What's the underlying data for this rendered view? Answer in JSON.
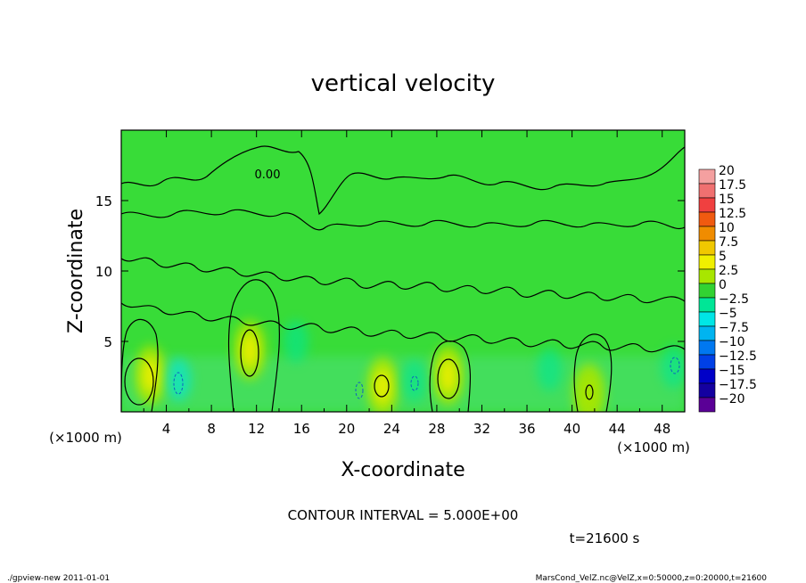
{
  "chart_data": {
    "type": "heatmap",
    "title": "vertical velocity",
    "xlabel": "X-coordinate",
    "ylabel": "Z-coordinate",
    "x_unit_note_left": "(×1000 m)",
    "x_unit_note_right": "(×1000 m)",
    "xlim": [
      0,
      50
    ],
    "ylim": [
      0,
      20
    ],
    "xticks": [
      4,
      8,
      12,
      16,
      20,
      24,
      28,
      32,
      36,
      40,
      44,
      48
    ],
    "xtick_labels": [
      "4",
      "8",
      "12",
      "16",
      "20",
      "24",
      "28",
      "32",
      "36",
      "40",
      "44",
      "48"
    ],
    "yticks": [
      5,
      10,
      15
    ],
    "ytick_labels": [
      "5",
      "10",
      "15"
    ],
    "contour_label": "0.00",
    "contour_interval_text": "CONTOUR INTERVAL = 5.000E+00",
    "time_text": "t=21600 s",
    "colorbar": {
      "levels": [
        20,
        17.5,
        15,
        12.5,
        10,
        7.5,
        5,
        2.5,
        0,
        -2.5,
        -5,
        -7.5,
        -10,
        -12.5,
        -15,
        -17.5,
        -20
      ],
      "labels": [
        "20",
        "17.5",
        "15",
        "12.5",
        "10",
        "7.5",
        "5",
        "2.5",
        "0",
        "−2.5",
        "−5",
        "−7.5",
        "−10",
        "−12.5",
        "−15",
        "−17.5",
        "−20"
      ],
      "colors": [
        "#f4a0a0",
        "#f07070",
        "#f04040",
        "#f05a10",
        "#f08c00",
        "#f0c800",
        "#f0f000",
        "#a8e600",
        "#32d232",
        "#00e696",
        "#00e6e6",
        "#00b4f0",
        "#0078f0",
        "#0040e6",
        "#0000c8",
        "#1400a0",
        "#5a0096"
      ]
    },
    "updrafts": [
      {
        "x": 2.6,
        "z": 2.6,
        "w": 6.2
      },
      {
        "x": 11.4,
        "z": 4.4,
        "w": 5.6
      },
      {
        "x": 23.2,
        "z": 1.8,
        "w": 4.2
      },
      {
        "x": 29.0,
        "z": 2.6,
        "w": 5.8
      },
      {
        "x": 41.5,
        "z": 1.3,
        "w": 3.0
      }
    ],
    "downdrafts": [
      {
        "x": 5.1,
        "z": 2.3,
        "w": -4.0
      },
      {
        "x": 15.5,
        "z": 5.0,
        "w": -2.5
      },
      {
        "x": 26.0,
        "z": 2.2,
        "w": -2.5
      },
      {
        "x": 38.0,
        "z": 3.0,
        "w": -2.0
      },
      {
        "x": 49.0,
        "z": 3.2,
        "w": -3.5
      }
    ]
  },
  "footer": {
    "left": "./gpview-new   2011-01-01",
    "right": "MarsCond_VelZ.nc@VelZ,x=0:50000,z=0:20000,t=21600"
  }
}
